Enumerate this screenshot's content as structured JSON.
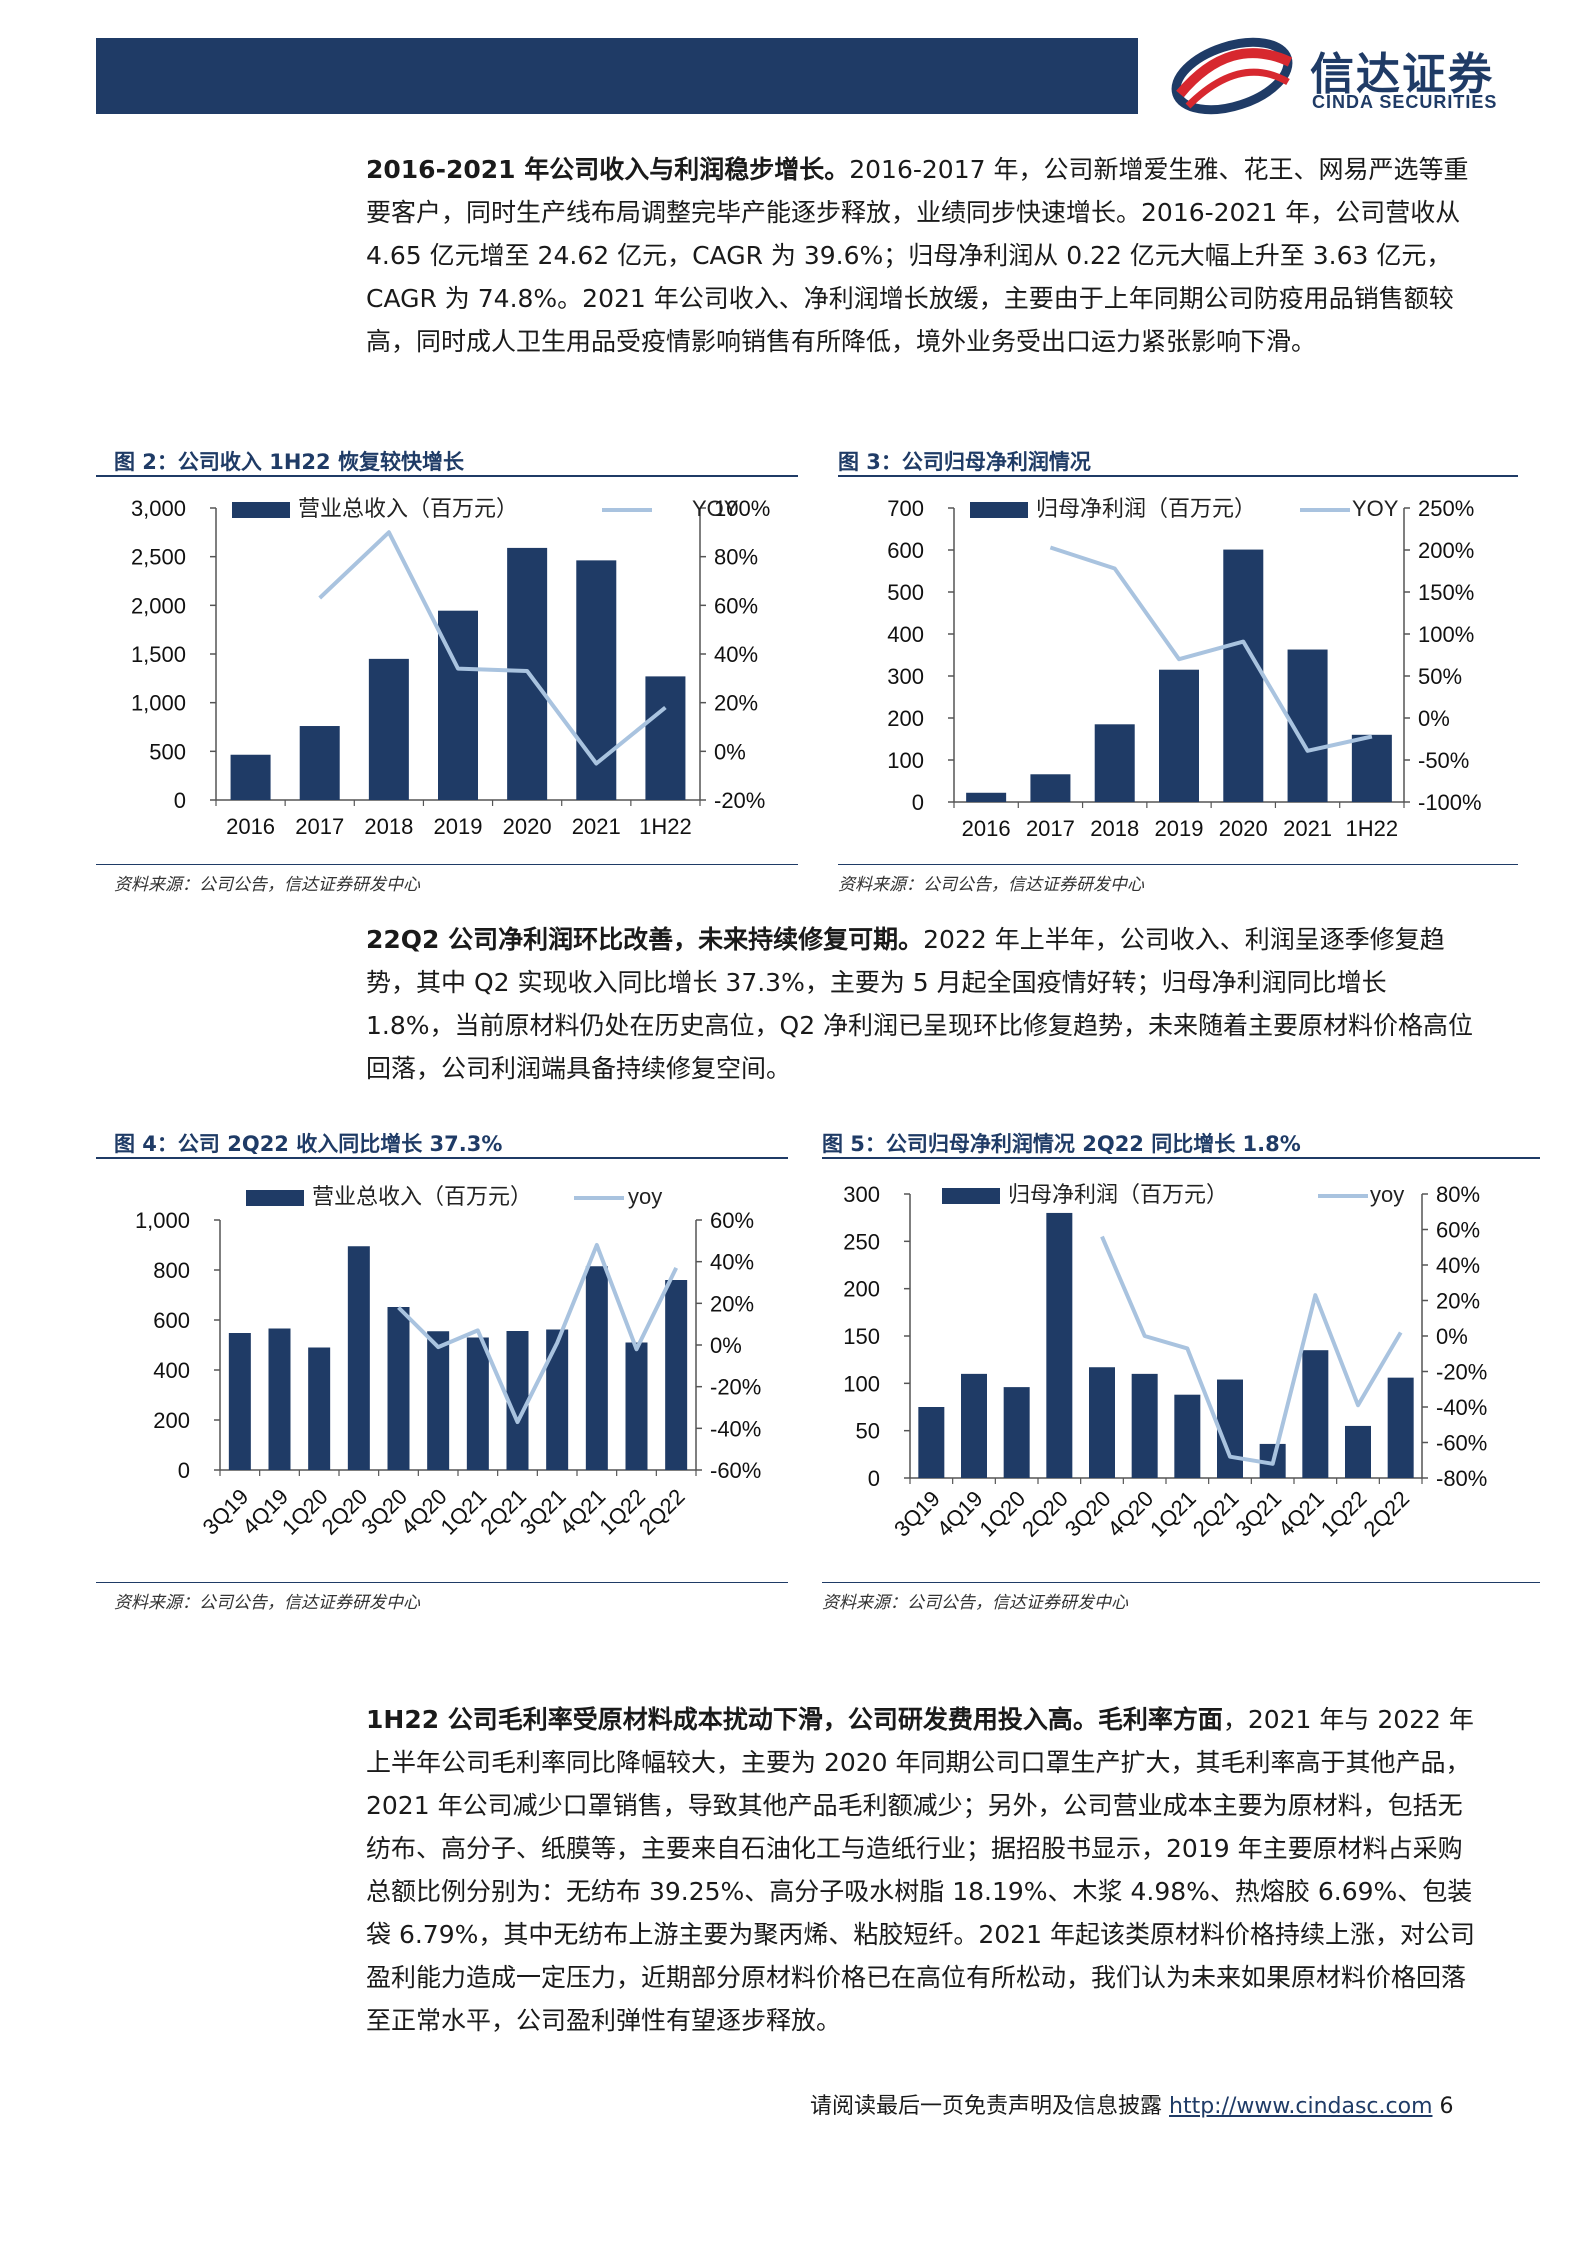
{
  "header": {
    "logo_cn": "信达证券",
    "logo_en": "CINDA SECURITIES",
    "logo_colors": {
      "navy": "#1f3b66",
      "red": "#d7282f"
    }
  },
  "paragraphs": [
    {
      "bold": "2016-2021 年公司收入与利润稳步增长。",
      "text": "2016-2017 年，公司新增爱生雅、花王、网易严选等重要客户，同时生产线布局调整完毕产能逐步释放，业绩同步快速增长。2016-2021 年，公司营收从 4.65 亿元增至 24.62 亿元，CAGR 为 39.6%；归母净利润从 0.22 亿元大幅上升至 3.63 亿元，CAGR 为 74.8%。2021 年公司收入、净利润增长放缓，主要由于上年同期公司防疫用品销售额较高，同时成人卫生用品受疫情影响销售有所降低，境外业务受出口运力紧张影响下滑。"
    },
    {
      "bold": "22Q2 公司净利润环比改善，未来持续修复可期。",
      "text": "2022 年上半年，公司收入、利润呈逐季修复趋势，其中 Q2 实现收入同比增长 37.3%，主要为 5 月起全国疫情好转；归母净利润同比增长 1.8%，当前原材料仍处在历史高位，Q2 净利润已呈现环比修复趋势，未来随着主要原材料价格高位回落，公司利润端具备持续修复空间。"
    },
    {
      "bold": "1H22 公司毛利率受原材料成本扰动下滑，公司研发费用投入高。毛利率方面",
      "text": "，2021 年与 2022 年上半年公司毛利率同比降幅较大，主要为 2020 年同期公司口罩生产扩大，其毛利率高于其他产品，2021 年公司减少口罩销售，导致其他产品毛利额减少；另外，公司营业成本主要为原材料，包括无纺布、高分子、纸膜等，主要来自石油化工与造纸行业；据招股书显示，2019 年主要原材料占采购总额比例分别为：无纺布 39.25%、高分子吸水树脂 18.19%、木浆 4.98%、热熔胶 6.69%、包装袋 6.79%，其中无纺布上游主要为聚丙烯、粘胶短纤。2021 年起该类原材料价格持续上涨，对公司盈利能力造成一定压力，近期部分原材料价格已在高位有所松动，我们认为未来如果原材料价格回落至正常水平，公司盈利弹性有望逐步释放。"
    }
  ],
  "figures": [
    {
      "title": "图 2：公司收入 1H22 恢复较快增长",
      "source": "资料来源：公司公告，信达证券研发中心"
    },
    {
      "title": "图 3：公司归母净利润情况",
      "source": "资料来源：公司公告，信达证券研发中心"
    },
    {
      "title": "图 4：公司 2Q22 收入同比增长 37.3%",
      "source": "资料来源：公司公告，信达证券研发中心"
    },
    {
      "title": "图 5：公司归母净利润情况 2Q22 同比增长 1.8%",
      "source": "资料来源：公司公告，信达证券研发中心"
    }
  ],
  "footer": {
    "disclaimer": "请阅读最后一页免责声明及信息披露",
    "url": "http://www.cindasc.com",
    "page": "6"
  },
  "colors": {
    "bar": "#1f3b66",
    "line": "#a9c3df"
  },
  "chart_data": [
    {
      "type": "bar",
      "categories": [
        "2016",
        "2017",
        "2018",
        "2019",
        "2020",
        "2021",
        "1H22"
      ],
      "series": [
        {
          "name": "营业总收入（百万元）",
          "type": "bar",
          "axis": "left",
          "values": [
            465,
            760,
            1450,
            1945,
            2590,
            2462,
            1270
          ]
        },
        {
          "name": "YOY",
          "type": "line",
          "axis": "right",
          "values": [
            null,
            63,
            90,
            34,
            33,
            -5,
            18
          ]
        }
      ],
      "ylim_left": [
        0,
        3000
      ],
      "yticks_left": [
        "0",
        "500",
        "1,000",
        "1,500",
        "2,000",
        "2,500",
        "3,000"
      ],
      "ylim_right": [
        -20,
        100
      ],
      "yticks_right": [
        "-20%",
        "0%",
        "20%",
        "40%",
        "60%",
        "80%",
        "100%"
      ],
      "legend": "top"
    },
    {
      "type": "bar",
      "categories": [
        "2016",
        "2017",
        "2018",
        "2019",
        "2020",
        "2021",
        "1H22"
      ],
      "series": [
        {
          "name": "归母净利润（百万元）",
          "type": "bar",
          "axis": "left",
          "values": [
            22,
            66,
            185,
            315,
            601,
            363,
            160
          ]
        },
        {
          "name": "YOY",
          "type": "line",
          "axis": "right",
          "values": [
            null,
            203,
            178,
            70,
            91,
            -39,
            -22
          ]
        }
      ],
      "ylim_left": [
        0,
        700
      ],
      "yticks_left": [
        "0",
        "100",
        "200",
        "300",
        "400",
        "500",
        "600",
        "700"
      ],
      "ylim_right": [
        -100,
        250
      ],
      "yticks_right": [
        "-100%",
        "-50%",
        "0%",
        "50%",
        "100%",
        "150%",
        "200%",
        "250%"
      ],
      "legend": "top"
    },
    {
      "type": "bar",
      "categories": [
        "3Q19",
        "4Q19",
        "1Q20",
        "2Q20",
        "3Q20",
        "4Q20",
        "1Q21",
        "2Q21",
        "3Q21",
        "4Q21",
        "1Q22",
        "2Q22"
      ],
      "series": [
        {
          "name": "营业总收入（百万元）",
          "type": "bar",
          "axis": "left",
          "values": [
            548,
            566,
            490,
            895,
            652,
            555,
            530,
            556,
            562,
            815,
            510,
            760
          ]
        },
        {
          "name": "yoy",
          "type": "line",
          "axis": "right",
          "values": [
            null,
            null,
            null,
            null,
            18,
            -1,
            7,
            -37,
            1,
            48,
            -2,
            37
          ]
        }
      ],
      "ylim_left": [
        0,
        1000
      ],
      "yticks_left": [
        "0",
        "200",
        "400",
        "600",
        "800",
        "1,000"
      ],
      "ylim_right": [
        -60,
        60
      ],
      "yticks_right": [
        "-60%",
        "-40%",
        "-20%",
        "0%",
        "20%",
        "40%",
        "60%"
      ],
      "legend": "top"
    },
    {
      "type": "bar",
      "categories": [
        "3Q19",
        "4Q19",
        "1Q20",
        "2Q20",
        "3Q20",
        "4Q20",
        "1Q21",
        "2Q21",
        "3Q21",
        "4Q21",
        "1Q22",
        "2Q22"
      ],
      "series": [
        {
          "name": "归母净利润（百万元）",
          "type": "bar",
          "axis": "left",
          "values": [
            75,
            110,
            96,
            280,
            117,
            110,
            88,
            104,
            36,
            135,
            55,
            106
          ]
        },
        {
          "name": "yoy",
          "type": "line",
          "axis": "right",
          "values": [
            null,
            null,
            null,
            null,
            56,
            0,
            -7,
            -68,
            -72,
            23,
            -39,
            2
          ]
        }
      ],
      "ylim_left": [
        0,
        300
      ],
      "yticks_left": [
        "0",
        "50",
        "100",
        "150",
        "200",
        "250",
        "300"
      ],
      "ylim_right": [
        -80,
        80
      ],
      "yticks_right": [
        "-80%",
        "-60%",
        "-40%",
        "-20%",
        "0%",
        "20%",
        "40%",
        "60%",
        "80%"
      ],
      "legend": "top"
    }
  ]
}
